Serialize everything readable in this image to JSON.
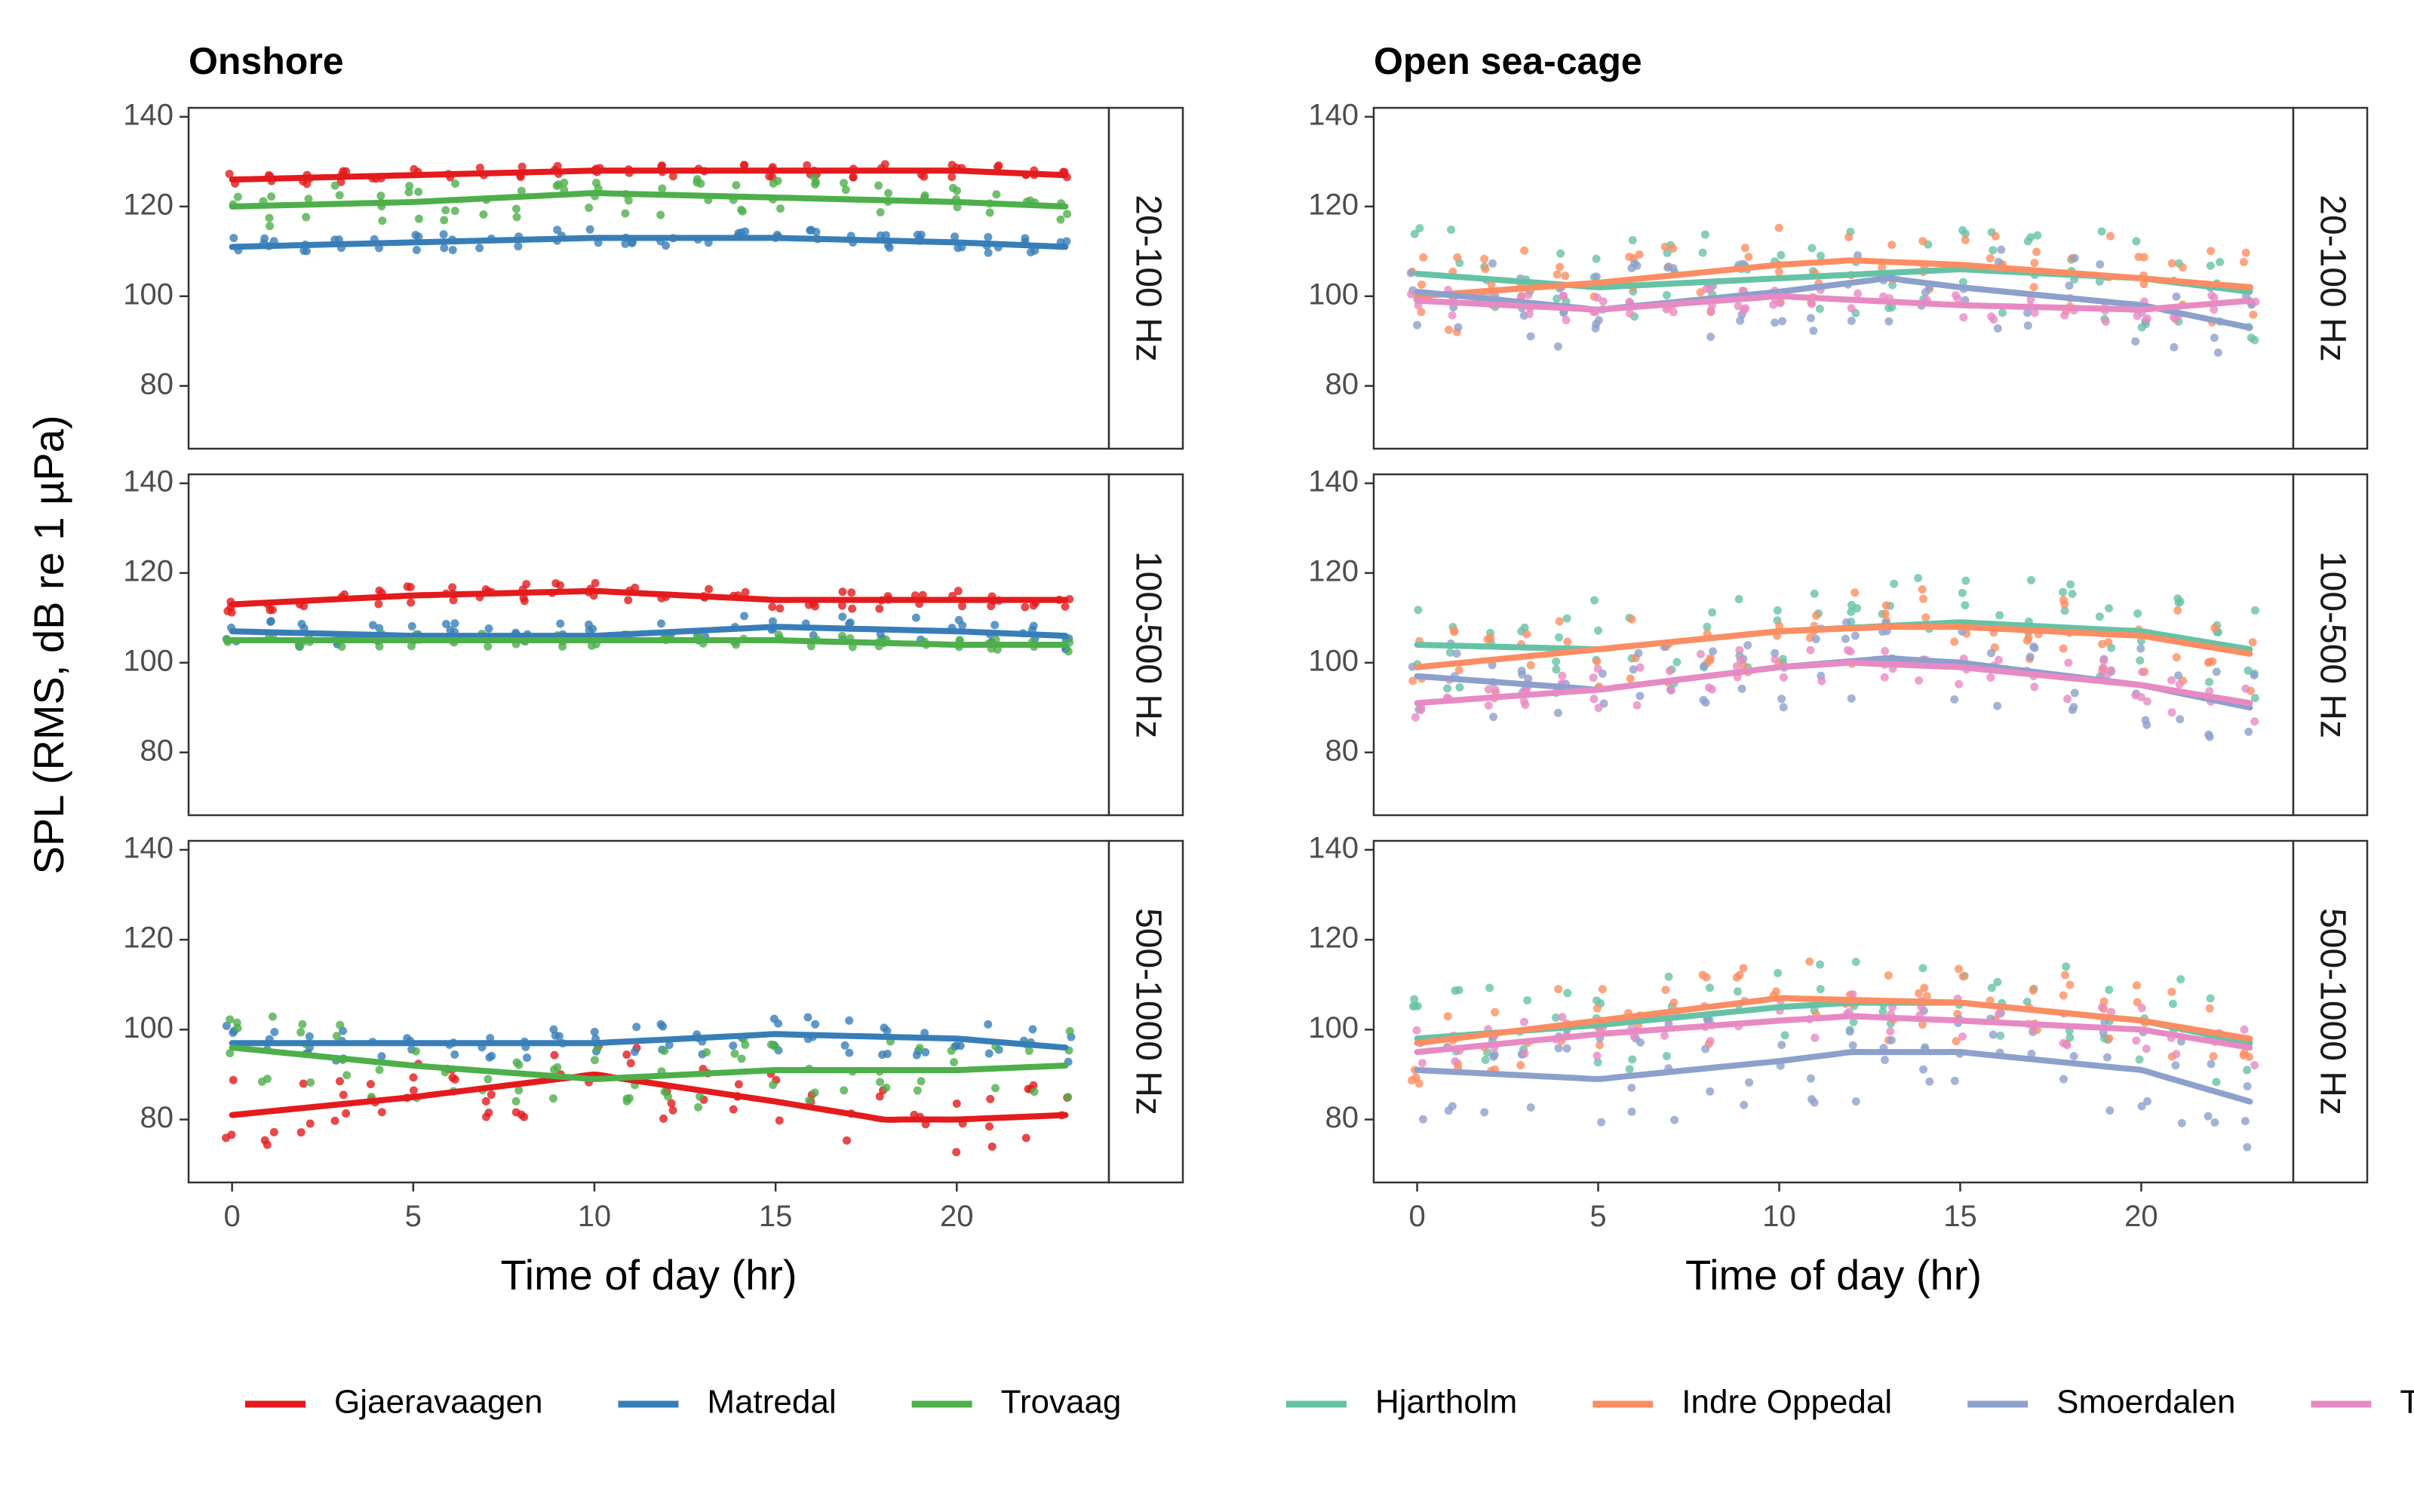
{
  "chart_data": {
    "type": "faceted-scatter-smooth",
    "ylabel": "SPL (RMS, dB re 1 µPa)",
    "ylim": [
      66,
      142
    ],
    "xlim": [
      -1.2,
      24.2
    ],
    "yticks": [
      80,
      100,
      120,
      140
    ],
    "xticks": [
      0,
      5,
      10,
      15,
      20
    ],
    "row_labels": [
      "20-100 Hz",
      "100-500 Hz",
      "500-1000 Hz"
    ],
    "panels": [
      {
        "title": "Onshore",
        "xlabel": "Time of day (hr)",
        "legend": [
          {
            "name": "Gjaeravaagen",
            "color": "#e41a1c"
          },
          {
            "name": "Matredal",
            "color": "#377eb8"
          },
          {
            "name": "Trovaag",
            "color": "#4daf4a"
          }
        ],
        "rows": [
          {
            "series": [
              {
                "name": "Gjaeravaagen",
                "color": "#e41a1c",
                "center": 127.5,
                "spread": 1.5,
                "smooth": [
                  [
                    0,
                    126
                  ],
                  [
                    5,
                    127
                  ],
                  [
                    10,
                    128
                  ],
                  [
                    15,
                    128
                  ],
                  [
                    20,
                    128
                  ],
                  [
                    23,
                    127
                  ]
                ]
              },
              {
                "name": "Matredal",
                "color": "#377eb8",
                "center": 111.5,
                "spread": 2,
                "smooth": [
                  [
                    0,
                    111
                  ],
                  [
                    5,
                    112
                  ],
                  [
                    10,
                    113
                  ],
                  [
                    15,
                    113
                  ],
                  [
                    20,
                    112
                  ],
                  [
                    23,
                    111
                  ]
                ]
              },
              {
                "name": "Trovaag",
                "color": "#4daf4a",
                "center": 121,
                "spread": 5,
                "smooth": [
                  [
                    0,
                    120
                  ],
                  [
                    5,
                    121
                  ],
                  [
                    10,
                    123
                  ],
                  [
                    15,
                    122
                  ],
                  [
                    20,
                    121
                  ],
                  [
                    23,
                    120
                  ]
                ]
              }
            ]
          },
          {
            "series": [
              {
                "name": "Gjaeravaagen",
                "color": "#e41a1c",
                "center": 114.5,
                "spread": 2,
                "smooth": [
                  [
                    0,
                    113
                  ],
                  [
                    5,
                    115
                  ],
                  [
                    10,
                    116
                  ],
                  [
                    15,
                    114
                  ],
                  [
                    20,
                    114
                  ],
                  [
                    23,
                    114
                  ]
                ]
              },
              {
                "name": "Matredal",
                "color": "#377eb8",
                "center": 105.5,
                "spread": 3,
                "smooth": [
                  [
                    0,
                    107
                  ],
                  [
                    5,
                    106
                  ],
                  [
                    10,
                    106
                  ],
                  [
                    15,
                    108
                  ],
                  [
                    20,
                    107
                  ],
                  [
                    23,
                    106
                  ]
                ]
              },
              {
                "name": "Trovaag",
                "color": "#4daf4a",
                "center": 104.5,
                "spread": 1.5,
                "smooth": [
                  [
                    0,
                    105
                  ],
                  [
                    5,
                    105
                  ],
                  [
                    10,
                    105
                  ],
                  [
                    15,
                    105
                  ],
                  [
                    20,
                    104
                  ],
                  [
                    23,
                    104
                  ]
                ]
              }
            ]
          },
          {
            "series": [
              {
                "name": "Gjaeravaagen",
                "color": "#e41a1c",
                "center": 85,
                "spread": 8,
                "smooth": [
                  [
                    0,
                    81
                  ],
                  [
                    5,
                    85
                  ],
                  [
                    10,
                    90
                  ],
                  [
                    15,
                    84
                  ],
                  [
                    18,
                    80
                  ],
                  [
                    20,
                    80
                  ],
                  [
                    23,
                    81
                  ]
                ]
              },
              {
                "name": "Matredal",
                "color": "#377eb8",
                "center": 98,
                "spread": 4,
                "smooth": [
                  [
                    0,
                    97
                  ],
                  [
                    5,
                    97
                  ],
                  [
                    10,
                    97
                  ],
                  [
                    15,
                    99
                  ],
                  [
                    20,
                    98
                  ],
                  [
                    23,
                    96
                  ]
                ]
              },
              {
                "name": "Trovaag",
                "color": "#4daf4a",
                "center": 93,
                "spread": 8,
                "smooth": [
                  [
                    0,
                    96
                  ],
                  [
                    5,
                    92
                  ],
                  [
                    10,
                    89
                  ],
                  [
                    15,
                    91
                  ],
                  [
                    20,
                    91
                  ],
                  [
                    23,
                    92
                  ]
                ]
              }
            ]
          }
        ]
      },
      {
        "title": "Open sea-cage",
        "xlabel": "Time of day (hr)",
        "legend": [
          {
            "name": "Hjartholm",
            "color": "#66c2a5"
          },
          {
            "name": "Indre Oppedal",
            "color": "#fc8d62"
          },
          {
            "name": "Smoerdalen",
            "color": "#8da0cb"
          },
          {
            "name": "Tveit",
            "color": "#e78ac3"
          }
        ],
        "rows": [
          {
            "series": [
              {
                "name": "Hjartholm",
                "color": "#66c2a5",
                "center": 106,
                "spread": 11,
                "smooth": [
                  [
                    0,
                    105
                  ],
                  [
                    5,
                    102
                  ],
                  [
                    10,
                    104
                  ],
                  [
                    15,
                    106
                  ],
                  [
                    20,
                    104
                  ],
                  [
                    23,
                    101
                  ]
                ]
              },
              {
                "name": "Indre Oppedal",
                "color": "#fc8d62",
                "center": 106,
                "spread": 9,
                "smooth": [
                  [
                    0,
                    100
                  ],
                  [
                    5,
                    103
                  ],
                  [
                    10,
                    107
                  ],
                  [
                    12,
                    108
                  ],
                  [
                    15,
                    107
                  ],
                  [
                    20,
                    104
                  ],
                  [
                    23,
                    102
                  ]
                ]
              },
              {
                "name": "Smoerdalen",
                "color": "#8da0cb",
                "center": 99,
                "spread": 10,
                "smooth": [
                  [
                    0,
                    101
                  ],
                  [
                    5,
                    97
                  ],
                  [
                    10,
                    101
                  ],
                  [
                    13,
                    104
                  ],
                  [
                    15,
                    102
                  ],
                  [
                    20,
                    98
                  ],
                  [
                    23,
                    93
                  ]
                ]
              },
              {
                "name": "Tveit",
                "color": "#e78ac3",
                "center": 99,
                "spread": 3,
                "smooth": [
                  [
                    0,
                    99
                  ],
                  [
                    5,
                    97
                  ],
                  [
                    10,
                    100
                  ],
                  [
                    15,
                    98
                  ],
                  [
                    20,
                    97
                  ],
                  [
                    23,
                    99
                  ]
                ]
              }
            ]
          },
          {
            "series": [
              {
                "name": "Hjartholm",
                "color": "#66c2a5",
                "center": 107,
                "spread": 11,
                "smooth": [
                  [
                    0,
                    104
                  ],
                  [
                    5,
                    103
                  ],
                  [
                    10,
                    107
                  ],
                  [
                    15,
                    109
                  ],
                  [
                    20,
                    107
                  ],
                  [
                    23,
                    103
                  ]
                ]
              },
              {
                "name": "Indre Oppedal",
                "color": "#fc8d62",
                "center": 106,
                "spread": 9,
                "smooth": [
                  [
                    0,
                    99
                  ],
                  [
                    5,
                    103
                  ],
                  [
                    10,
                    107
                  ],
                  [
                    13,
                    108
                  ],
                  [
                    15,
                    108
                  ],
                  [
                    20,
                    106
                  ],
                  [
                    23,
                    102
                  ]
                ]
              },
              {
                "name": "Smoerdalen",
                "color": "#8da0cb",
                "center": 96,
                "spread": 9,
                "smooth": [
                  [
                    0,
                    97
                  ],
                  [
                    5,
                    94
                  ],
                  [
                    10,
                    99
                  ],
                  [
                    13,
                    101
                  ],
                  [
                    15,
                    100
                  ],
                  [
                    20,
                    95
                  ],
                  [
                    23,
                    90
                  ]
                ]
              },
              {
                "name": "Tveit",
                "color": "#e78ac3",
                "center": 96,
                "spread": 5,
                "smooth": [
                  [
                    0,
                    91
                  ],
                  [
                    5,
                    94
                  ],
                  [
                    10,
                    99
                  ],
                  [
                    12,
                    100
                  ],
                  [
                    15,
                    99
                  ],
                  [
                    20,
                    95
                  ],
                  [
                    23,
                    91
                  ]
                ]
              }
            ]
          },
          {
            "series": [
              {
                "name": "Hjartholm",
                "color": "#66c2a5",
                "center": 103,
                "spread": 11,
                "smooth": [
                  [
                    0,
                    98
                  ],
                  [
                    5,
                    101
                  ],
                  [
                    10,
                    105
                  ],
                  [
                    12,
                    106
                  ],
                  [
                    15,
                    106
                  ],
                  [
                    20,
                    102
                  ],
                  [
                    23,
                    97
                  ]
                ]
              },
              {
                "name": "Indre Oppedal",
                "color": "#fc8d62",
                "center": 103,
                "spread": 9,
                "smooth": [
                  [
                    0,
                    97
                  ],
                  [
                    5,
                    102
                  ],
                  [
                    10,
                    107
                  ],
                  [
                    15,
                    106
                  ],
                  [
                    20,
                    102
                  ],
                  [
                    23,
                    98
                  ]
                ]
              },
              {
                "name": "Smoerdalen",
                "color": "#8da0cb",
                "center": 90,
                "spread": 11,
                "smooth": [
                  [
                    0,
                    91
                  ],
                  [
                    5,
                    89
                  ],
                  [
                    10,
                    93
                  ],
                  [
                    12,
                    95
                  ],
                  [
                    15,
                    95
                  ],
                  [
                    20,
                    91
                  ],
                  [
                    23,
                    84
                  ]
                ]
              },
              {
                "name": "Tveit",
                "color": "#e78ac3",
                "center": 100,
                "spread": 5,
                "smooth": [
                  [
                    0,
                    95
                  ],
                  [
                    5,
                    99
                  ],
                  [
                    10,
                    102
                  ],
                  [
                    12,
                    103
                  ],
                  [
                    15,
                    102
                  ],
                  [
                    20,
                    100
                  ],
                  [
                    23,
                    96
                  ]
                ]
              }
            ]
          }
        ]
      }
    ]
  }
}
